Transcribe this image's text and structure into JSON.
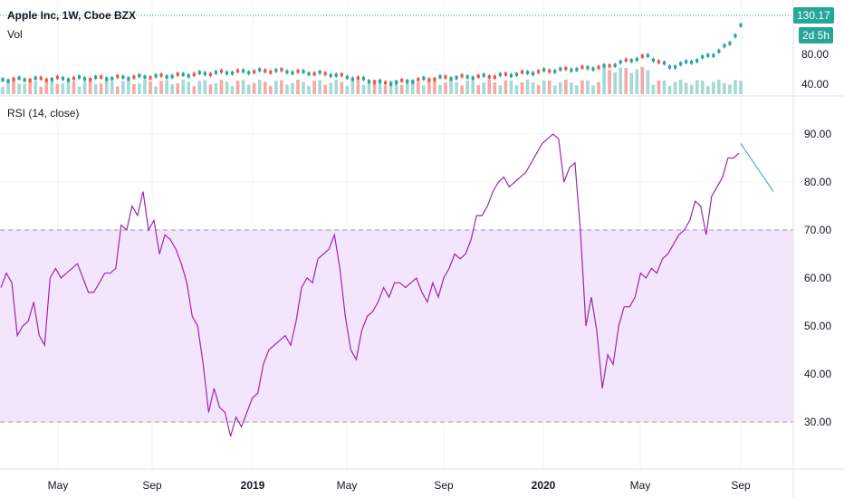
{
  "header": {
    "title": "Apple Inc, 1W, Cboe BZX",
    "vol_label": "Vol",
    "rsi_label": "RSI (14, close)"
  },
  "price_tags": {
    "last_price": "130.17",
    "countdown": "2d 5h"
  },
  "colors": {
    "up": "#26a69a",
    "down": "#ef5350",
    "rsi_line": "#9c27b0",
    "rsi_band": "#f3e5fc",
    "projection": "#4da6e8",
    "grid": "#f0f3fa",
    "border": "#e0e3eb"
  },
  "chart_data": [
    {
      "type": "line",
      "title": "Apple Inc, 1W, Cboe BZX",
      "subtitle": "Vol",
      "y_ticks": [
        "80.00",
        "40.00"
      ],
      "last_value": 130.17,
      "note": "weekly candlesticks with volume histogram"
    },
    {
      "type": "line",
      "title": "RSI (14, close)",
      "x_labels": [
        "May",
        "Sep",
        "2019",
        "May",
        "Sep",
        "2020",
        "May",
        "Sep"
      ],
      "ylim": [
        20,
        95
      ],
      "y_ticks": [
        90,
        80,
        70,
        60,
        50,
        40,
        30
      ],
      "y_tick_labels": [
        "90.00",
        "80.00",
        "70.00",
        "60.00",
        "50.00",
        "40.00",
        "30.00"
      ],
      "band": [
        30,
        70
      ],
      "series": [
        {
          "values": [
            58,
            61,
            59,
            48,
            50,
            51,
            55,
            48,
            46,
            60,
            62,
            60,
            61,
            62,
            63,
            60,
            57,
            57,
            59,
            61,
            61,
            62,
            71,
            70,
            75,
            73,
            78,
            70,
            72,
            65,
            69,
            68,
            66,
            63,
            59,
            52,
            50,
            42,
            32,
            37,
            33,
            32,
            27,
            31,
            29,
            32,
            35,
            36,
            42,
            45,
            46,
            47,
            48,
            46,
            51,
            58,
            60,
            59,
            64,
            65,
            66,
            69,
            62,
            52,
            45,
            43,
            49,
            52,
            53,
            55,
            58,
            56,
            59,
            59,
            58,
            59,
            60,
            57,
            55,
            59,
            56,
            60,
            62,
            65,
            64,
            65,
            68,
            73,
            73,
            75,
            78,
            80,
            81,
            79,
            80,
            81,
            82,
            84,
            86,
            88,
            89,
            90,
            89,
            80,
            83,
            84,
            70,
            50,
            56,
            49,
            37,
            44,
            42,
            50,
            54,
            54,
            56,
            61,
            60,
            62,
            61,
            64,
            65,
            67,
            69,
            70,
            72,
            76,
            75,
            69,
            77,
            79,
            81,
            85,
            85,
            86
          ]
        },
        {
          "values": [
            88,
            78
          ]
        }
      ]
    }
  ]
}
